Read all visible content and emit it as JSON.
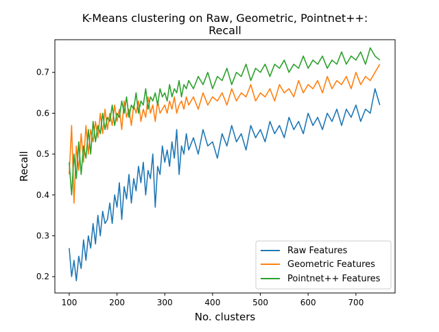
{
  "chart_data": {
    "type": "line",
    "title_line1": "K-Means clustering on Raw, Geometric, Pointnet++:",
    "title_line2": "Recall",
    "xlabel": "No. clusters",
    "ylabel": "Recall",
    "xlim": [
      70,
      782
    ],
    "ylim": [
      0.16,
      0.78
    ],
    "grid": false,
    "legend_position": "lower-right",
    "x_ticks": [
      {
        "value": 100,
        "label": "100"
      },
      {
        "value": 200,
        "label": "200"
      },
      {
        "value": 300,
        "label": "300"
      },
      {
        "value": 400,
        "label": "400"
      },
      {
        "value": 500,
        "label": "500"
      },
      {
        "value": 600,
        "label": "600"
      },
      {
        "value": 700,
        "label": "700"
      }
    ],
    "y_ticks": [
      {
        "value": 0.2,
        "label": "0.2"
      },
      {
        "value": 0.3,
        "label": "0.3"
      },
      {
        "value": 0.4,
        "label": "0.4"
      },
      {
        "value": 0.5,
        "label": "0.5"
      },
      {
        "value": 0.6,
        "label": "0.6"
      },
      {
        "value": 0.7,
        "label": "0.7"
      }
    ],
    "series": [
      {
        "name": "Raw Features",
        "color": "#1f77b4",
        "x": [
          100,
          105,
          110,
          115,
          120,
          125,
          130,
          135,
          140,
          145,
          150,
          155,
          160,
          165,
          170,
          175,
          180,
          185,
          190,
          195,
          200,
          205,
          210,
          215,
          220,
          225,
          230,
          235,
          240,
          245,
          250,
          255,
          260,
          265,
          270,
          275,
          280,
          285,
          290,
          295,
          300,
          305,
          310,
          315,
          320,
          325,
          330,
          335,
          340,
          345,
          350,
          360,
          370,
          380,
          390,
          400,
          410,
          420,
          430,
          440,
          450,
          460,
          470,
          480,
          490,
          500,
          510,
          520,
          530,
          540,
          550,
          560,
          570,
          580,
          590,
          600,
          610,
          620,
          630,
          640,
          650,
          660,
          670,
          680,
          690,
          700,
          710,
          720,
          730,
          740,
          750
        ],
        "y": [
          0.27,
          0.2,
          0.24,
          0.19,
          0.25,
          0.22,
          0.29,
          0.24,
          0.3,
          0.27,
          0.33,
          0.28,
          0.35,
          0.3,
          0.36,
          0.33,
          0.34,
          0.38,
          0.33,
          0.4,
          0.37,
          0.43,
          0.34,
          0.42,
          0.39,
          0.45,
          0.38,
          0.44,
          0.41,
          0.47,
          0.43,
          0.48,
          0.4,
          0.46,
          0.44,
          0.5,
          0.37,
          0.47,
          0.45,
          0.52,
          0.48,
          0.51,
          0.47,
          0.53,
          0.49,
          0.56,
          0.45,
          0.52,
          0.5,
          0.55,
          0.51,
          0.54,
          0.5,
          0.56,
          0.52,
          0.53,
          0.49,
          0.55,
          0.52,
          0.57,
          0.53,
          0.55,
          0.51,
          0.57,
          0.54,
          0.56,
          0.53,
          0.58,
          0.55,
          0.57,
          0.54,
          0.59,
          0.56,
          0.58,
          0.55,
          0.6,
          0.57,
          0.59,
          0.56,
          0.6,
          0.58,
          0.61,
          0.57,
          0.61,
          0.59,
          0.62,
          0.58,
          0.61,
          0.6,
          0.66,
          0.62
        ]
      },
      {
        "name": "Geometric Features",
        "color": "#ff7f0e",
        "x": [
          100,
          105,
          110,
          115,
          120,
          125,
          130,
          135,
          140,
          145,
          150,
          155,
          160,
          165,
          170,
          175,
          180,
          185,
          190,
          195,
          200,
          205,
          210,
          215,
          220,
          225,
          230,
          235,
          240,
          245,
          250,
          255,
          260,
          265,
          270,
          275,
          280,
          285,
          290,
          295,
          300,
          305,
          310,
          315,
          320,
          325,
          330,
          335,
          340,
          345,
          350,
          360,
          370,
          380,
          390,
          400,
          410,
          420,
          430,
          440,
          450,
          460,
          470,
          480,
          490,
          500,
          510,
          520,
          530,
          540,
          550,
          560,
          570,
          580,
          590,
          600,
          610,
          620,
          630,
          640,
          650,
          660,
          670,
          680,
          690,
          700,
          710,
          720,
          730,
          740,
          750
        ],
        "y": [
          0.45,
          0.57,
          0.38,
          0.52,
          0.46,
          0.55,
          0.48,
          0.57,
          0.5,
          0.56,
          0.53,
          0.58,
          0.54,
          0.6,
          0.55,
          0.61,
          0.56,
          0.6,
          0.57,
          0.62,
          0.58,
          0.61,
          0.56,
          0.63,
          0.59,
          0.61,
          0.57,
          0.62,
          0.6,
          0.63,
          0.58,
          0.61,
          0.59,
          0.64,
          0.6,
          0.62,
          0.58,
          0.63,
          0.6,
          0.61,
          0.62,
          0.6,
          0.63,
          0.61,
          0.64,
          0.6,
          0.62,
          0.63,
          0.61,
          0.64,
          0.62,
          0.64,
          0.61,
          0.65,
          0.62,
          0.64,
          0.63,
          0.65,
          0.62,
          0.66,
          0.63,
          0.65,
          0.64,
          0.67,
          0.63,
          0.65,
          0.64,
          0.66,
          0.63,
          0.67,
          0.65,
          0.66,
          0.64,
          0.68,
          0.65,
          0.67,
          0.66,
          0.68,
          0.65,
          0.69,
          0.66,
          0.68,
          0.67,
          0.69,
          0.66,
          0.7,
          0.67,
          0.69,
          0.68,
          0.7,
          0.72
        ]
      },
      {
        "name": "Pointnet++ Features",
        "color": "#2ca02c",
        "x": [
          100,
          105,
          110,
          115,
          120,
          125,
          130,
          135,
          140,
          145,
          150,
          155,
          160,
          165,
          170,
          175,
          180,
          185,
          190,
          195,
          200,
          205,
          210,
          215,
          220,
          225,
          230,
          235,
          240,
          245,
          250,
          255,
          260,
          265,
          270,
          275,
          280,
          285,
          290,
          295,
          300,
          305,
          310,
          315,
          320,
          325,
          330,
          335,
          340,
          345,
          350,
          360,
          370,
          380,
          390,
          400,
          410,
          420,
          430,
          440,
          450,
          460,
          470,
          480,
          490,
          500,
          510,
          520,
          530,
          540,
          550,
          560,
          570,
          580,
          590,
          600,
          610,
          620,
          630,
          640,
          650,
          660,
          670,
          680,
          690,
          700,
          710,
          720,
          730,
          740,
          750
        ],
        "y": [
          0.48,
          0.4,
          0.5,
          0.44,
          0.53,
          0.45,
          0.52,
          0.49,
          0.56,
          0.5,
          0.58,
          0.53,
          0.57,
          0.55,
          0.6,
          0.56,
          0.59,
          0.58,
          0.62,
          0.57,
          0.6,
          0.59,
          0.63,
          0.6,
          0.64,
          0.59,
          0.62,
          0.61,
          0.65,
          0.6,
          0.63,
          0.62,
          0.66,
          0.61,
          0.64,
          0.63,
          0.65,
          0.62,
          0.66,
          0.64,
          0.65,
          0.63,
          0.67,
          0.64,
          0.66,
          0.65,
          0.68,
          0.64,
          0.67,
          0.66,
          0.68,
          0.66,
          0.69,
          0.67,
          0.7,
          0.66,
          0.69,
          0.68,
          0.71,
          0.67,
          0.7,
          0.69,
          0.72,
          0.68,
          0.71,
          0.7,
          0.72,
          0.69,
          0.72,
          0.71,
          0.73,
          0.7,
          0.72,
          0.71,
          0.74,
          0.71,
          0.73,
          0.72,
          0.74,
          0.71,
          0.73,
          0.72,
          0.75,
          0.72,
          0.74,
          0.73,
          0.75,
          0.72,
          0.76,
          0.74,
          0.73
        ]
      }
    ]
  }
}
